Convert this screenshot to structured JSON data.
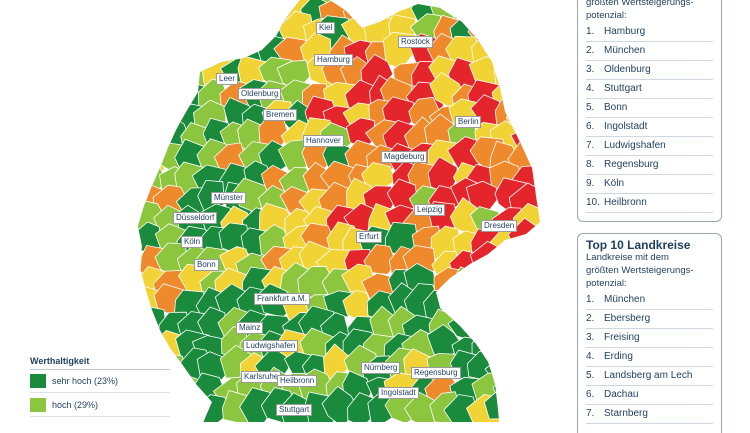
{
  "map": {
    "colors": {
      "sehr_hoch": "#1a8a3c",
      "hoch": "#8cc63f",
      "mittel": "#f2d335",
      "niedrig": "#ee8a2c",
      "sehr_niedrig": "#e4262c",
      "border": "#ffffff"
    },
    "cities": [
      {
        "label": "Kiel"
      },
      {
        "label": "Hamburg"
      },
      {
        "label": "Rostock"
      },
      {
        "label": "Leer"
      },
      {
        "label": "Oldenburg"
      },
      {
        "label": "Bremen"
      },
      {
        "label": "Berlin"
      },
      {
        "label": "Hannover"
      },
      {
        "label": "Magdeburg"
      },
      {
        "label": "Münster"
      },
      {
        "label": "Düsseldorf"
      },
      {
        "label": "Leipzig"
      },
      {
        "label": "Dresden"
      },
      {
        "label": "Köln"
      },
      {
        "label": "Erfurt"
      },
      {
        "label": "Bonn"
      },
      {
        "label": "Frankfurt a.M."
      },
      {
        "label": "Mainz"
      },
      {
        "label": "Ludwigshafen"
      },
      {
        "label": "Nürnberg"
      },
      {
        "label": "Regensburg"
      },
      {
        "label": "Karlsruhe"
      },
      {
        "label": "Heilbronn"
      },
      {
        "label": "Ingolstadt"
      },
      {
        "label": "Stuttgart"
      }
    ]
  },
  "legend": {
    "title": "Werthaltigkeit",
    "items": [
      {
        "label": "sehr hoch (23%)",
        "color": "#1a8a3c"
      },
      {
        "label": "hoch (29%)",
        "color": "#8cc63f"
      }
    ]
  },
  "top_cities": {
    "subtitle_fragment": "größten Wertsteigerungs-",
    "subtitle_end": "potenzial:",
    "items": [
      "Hamburg",
      "München",
      "Oldenburg",
      "Stuttgart",
      "Bonn",
      "Ingolstadt",
      "Ludwigshafen",
      "Regensburg",
      "Köln",
      "Heilbronn"
    ],
    "numbers": [
      "1.",
      "2.",
      "3.",
      "4.",
      "5.",
      "6.",
      "7.",
      "8.",
      "9.",
      "10."
    ]
  },
  "top_landkreise": {
    "title": "Top 10 Landkreise",
    "subtitle_1": "Landkreise mit dem",
    "subtitle_2": "größten Wertsteigerungs-",
    "subtitle_3": "potenzial:",
    "items": [
      "München",
      "Ebersberg",
      "Freising",
      "Erding",
      "Landsberg am Lech",
      "Dachau",
      "Starnberg"
    ],
    "numbers": [
      "1.",
      "2.",
      "3.",
      "4.",
      "5.",
      "6.",
      "7."
    ]
  }
}
